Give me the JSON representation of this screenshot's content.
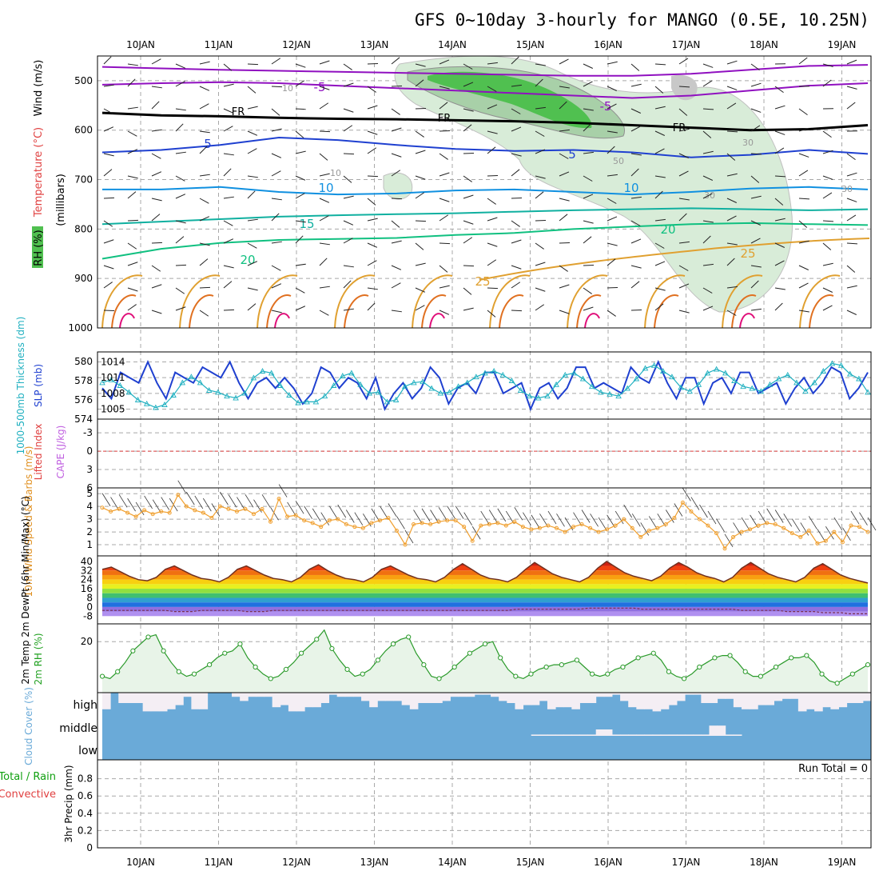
{
  "title": "GFS 0~10day 3-hourly for MANGO (0.5E, 10.25N)",
  "dates": [
    "10JAN",
    "11JAN",
    "12JAN",
    "13JAN",
    "14JAN",
    "15JAN",
    "16JAN",
    "17JAN",
    "18JAN",
    "19JAN"
  ],
  "colors": {
    "purple": "#9010c0",
    "blue": "#1f40d0",
    "lightblue": "#1090e0",
    "teal": "#10b0a0",
    "green": "#10c080",
    "orange": "#e0a030",
    "darkorange": "#e07020",
    "magenta": "#e0107a",
    "rh_light": "#d8ecd8",
    "rh_mid": "#a8d0a8",
    "rh_dark": "#50c050",
    "rh_gray": "#c8c8c8",
    "cloud": "#6aaad8",
    "cloud_clear": "#f4eef4",
    "rh2m_fill": "#e8f4e8",
    "rh2m_line": "#2a9a2a",
    "wind_line": "#f0a030",
    "slp_line": "#1f40d0",
    "thk_line": "#20b0c0",
    "li_line": "#e04040"
  },
  "chart_data": [
    {
      "type": "line",
      "panel": "upper-air",
      "ylabel_parts": [
        "Wind (m/s)",
        "Temperature (°C)",
        "RH (%)",
        "(millibars)"
      ],
      "yticks": [
        500,
        600,
        700,
        800,
        900,
        1000
      ],
      "ylim": [
        450,
        1000
      ],
      "isotherm_labels": [
        "-5",
        "-5",
        "5",
        "5",
        "10",
        "10",
        "15",
        "20",
        "20",
        "25",
        "25"
      ],
      "freezing_labels": [
        "FR",
        "FR",
        "FR"
      ],
      "rh_labels": [
        "10",
        "10",
        "30",
        "30",
        "30",
        "50"
      ],
      "series": [
        {
          "label": "-5",
          "color": "purple",
          "pressure": [
            472,
            475,
            478,
            480,
            482,
            484,
            486,
            488,
            490,
            490,
            486,
            478,
            470,
            468
          ]
        },
        {
          "label": "-5",
          "color": "purple",
          "pressure": [
            508,
            505,
            503,
            505,
            510,
            515,
            520,
            525,
            530,
            535,
            530,
            520,
            510,
            505
          ]
        },
        {
          "label": "FR",
          "color": "black",
          "pressure": [
            565,
            570,
            572,
            575,
            577,
            578,
            580,
            582,
            585,
            590,
            595,
            600,
            598,
            590
          ]
        },
        {
          "label": "5",
          "color": "blue",
          "pressure": [
            645,
            640,
            630,
            615,
            620,
            630,
            638,
            642,
            640,
            645,
            655,
            650,
            640,
            648
          ]
        },
        {
          "label": "10",
          "color": "lightblue",
          "pressure": [
            720,
            720,
            715,
            725,
            730,
            728,
            722,
            720,
            725,
            730,
            725,
            718,
            715,
            720
          ]
        },
        {
          "label": "15",
          "color": "teal",
          "pressure": [
            790,
            785,
            780,
            775,
            772,
            770,
            768,
            765,
            762,
            760,
            758,
            760,
            762,
            760
          ]
        },
        {
          "label": "20",
          "color": "green",
          "pressure": [
            860,
            840,
            828,
            822,
            820,
            818,
            812,
            808,
            800,
            795,
            790,
            788,
            790,
            792
          ]
        }
      ]
    },
    {
      "type": "line",
      "panel": "slp-thickness",
      "ylabel_left": "1000-500mb Thickness (dm)",
      "ylabel_right": "SLP (mb)",
      "left_ticks": [
        574,
        576,
        578,
        580
      ],
      "right_ticks": [
        1005,
        1008,
        1011,
        1014
      ],
      "series": [
        {
          "name": "SLP (mb)",
          "color": "slp_line",
          "axis": "right",
          "values": [
            1009,
            1007,
            1012,
            1011,
            1010,
            1014,
            1010,
            1007,
            1012,
            1011,
            1010,
            1013,
            1012,
            1011,
            1014,
            1010,
            1007,
            1010,
            1011,
            1009,
            1011,
            1009,
            1006,
            1008,
            1013,
            1012,
            1009,
            1011,
            1010,
            1007,
            1011,
            1005,
            1008,
            1010,
            1007,
            1009,
            1013,
            1011,
            1006,
            1009,
            1010,
            1008,
            1012,
            1012,
            1008,
            1009,
            1010,
            1005,
            1009,
            1010,
            1007,
            1009,
            1013,
            1013,
            1009,
            1010,
            1009,
            1008,
            1013,
            1011,
            1010,
            1014,
            1010,
            1007,
            1011,
            1011,
            1006,
            1010,
            1011,
            1008,
            1012,
            1012,
            1008,
            1009,
            1010,
            1006,
            1009,
            1011,
            1008,
            1010,
            1013,
            1012,
            1007,
            1009,
            1012
          ]
        },
        {
          "name": "1000-500mb Thickness (dm)",
          "color": "thk_line",
          "axis": "left",
          "values": [
            577.8,
            578.1,
            577.5,
            576.8,
            576.0,
            575.6,
            575.2,
            575.5,
            576.5,
            577.8,
            578.4,
            577.8,
            577.0,
            576.8,
            576.4,
            576.2,
            576.7,
            578.3,
            579.0,
            578.8,
            577.5,
            576.5,
            575.7,
            575.8,
            575.8,
            576.4,
            577.5,
            578.5,
            578.8,
            577.6,
            576.7,
            576.8,
            575.8,
            576.0,
            577.4,
            577.8,
            577.9,
            577.2,
            576.7,
            576.8,
            577.4,
            577.8,
            578.4,
            578.8,
            579.0,
            578.6,
            578.0,
            577.0,
            576.4,
            576.2,
            576.4,
            577.6,
            578.6,
            578.8,
            578.2,
            577.4,
            576.8,
            576.6,
            576.4,
            577.2,
            578.2,
            579.3,
            579.6,
            579.0,
            578.4,
            577.3,
            576.9,
            577.6,
            578.8,
            579.2,
            578.8,
            578.0,
            577.4,
            577.2,
            576.9,
            577.6,
            578.2,
            578.6,
            577.8,
            576.9,
            577.8,
            579.0,
            579.8,
            579.6,
            578.7,
            578.2,
            576.8
          ]
        }
      ]
    },
    {
      "type": "line",
      "panel": "lifted-index-cape",
      "ylabel_left": "Lifted Index",
      "ylabel_right": "CAPE (J/kg)",
      "yticks": [
        -3,
        0,
        3,
        6
      ],
      "series": [
        {
          "name": "Lifted Index",
          "color": "li_line",
          "values": []
        }
      ]
    },
    {
      "type": "line",
      "panel": "10m-wind",
      "ylabel": "10m Wind Speed & Barbs (m/s)",
      "yticks": [
        1,
        2,
        3,
        4,
        5
      ],
      "series": [
        {
          "name": "Speed",
          "color": "wind_line",
          "values": [
            3.9,
            3.6,
            3.8,
            3.5,
            3.2,
            3.7,
            3.4,
            3.6,
            3.5,
            4.9,
            4.0,
            3.7,
            3.5,
            3.1,
            4.0,
            3.8,
            3.6,
            3.8,
            3.4,
            3.8,
            2.8,
            4.6,
            3.2,
            3.3,
            2.9,
            2.7,
            2.4,
            2.9,
            3.0,
            2.6,
            2.4,
            2.3,
            2.7,
            2.9,
            3.1,
            2.1,
            1.0,
            2.6,
            2.7,
            2.6,
            2.8,
            2.9,
            2.9,
            2.4,
            1.3,
            2.5,
            2.6,
            2.7,
            2.5,
            2.8,
            2.4,
            2.2,
            2.3,
            2.5,
            2.3,
            2.0,
            2.4,
            2.6,
            2.3,
            2.0,
            2.2,
            2.5,
            3.0,
            2.3,
            1.6,
            2.1,
            2.3,
            2.6,
            3.1,
            4.3,
            3.6,
            3.0,
            2.5,
            1.9,
            0.7,
            1.6,
            2.0,
            2.2,
            2.5,
            2.7,
            2.6,
            2.3,
            1.9,
            1.6,
            2.1,
            1.1,
            1.3,
            2.0,
            1.2,
            2.5,
            2.4,
            2.0
          ]
        }
      ]
    },
    {
      "type": "area",
      "panel": "2m-temperature",
      "ylabel": "2m Temp 2m DewPt (6hr Min/Max) (°C)",
      "yticks": [
        40,
        32,
        24,
        16,
        8,
        0,
        -8
      ],
      "series": [
        {
          "name": "2m Temp",
          "values": [
            33,
            35,
            31,
            27,
            24,
            23,
            26,
            33,
            36,
            32,
            28,
            25,
            24,
            22,
            26,
            33,
            36,
            32,
            28,
            25,
            24,
            22,
            26,
            33,
            37,
            32,
            28,
            25,
            24,
            22,
            26,
            33,
            36,
            32,
            28,
            25,
            24,
            22,
            26,
            33,
            38,
            33,
            28,
            25,
            24,
            22,
            26,
            33,
            39,
            34,
            29,
            26,
            24,
            22,
            26,
            34,
            40,
            35,
            30,
            27,
            25,
            23,
            27,
            34,
            39,
            35,
            30,
            27,
            25,
            22,
            26,
            34,
            39,
            34,
            29,
            26,
            24,
            22,
            26,
            34,
            38,
            33,
            28,
            25,
            23,
            21
          ]
        },
        {
          "name": "2m DewPt",
          "values": [
            -3,
            -3,
            -3,
            -3,
            -3,
            -3,
            -3,
            -3,
            -4,
            -4,
            -4,
            -3,
            -3,
            -3,
            -3,
            -3,
            -4,
            -4,
            -4,
            -3,
            -3,
            -3,
            -3,
            -3,
            -3,
            -3,
            -3,
            -3,
            -3,
            -3,
            -3,
            -3,
            -3,
            -3,
            -3,
            -3,
            -3,
            -3,
            -3,
            -3,
            -3,
            -3,
            -3,
            -3,
            -3,
            -3,
            -2,
            -2,
            -2,
            -2,
            -2,
            -2,
            -2,
            -2,
            -1,
            -1,
            -1,
            -1,
            -1,
            -1,
            -2,
            -2,
            -2,
            -2,
            -2,
            -2,
            -2,
            -2,
            -2,
            -2,
            -2,
            -3,
            -3,
            -3,
            -3,
            -3,
            -4,
            -4,
            -4,
            -4,
            -5,
            -5,
            -5,
            -6,
            -6,
            -6
          ]
        }
      ]
    },
    {
      "type": "area",
      "panel": "2m-rh",
      "ylabel": "2m RH (%)",
      "yticks": [
        20
      ],
      "series": [
        {
          "name": "2m RH",
          "values": [
            5,
            4,
            7,
            11,
            16,
            19,
            22,
            23,
            16,
            11,
            7,
            5,
            6,
            8,
            10,
            13,
            15,
            16,
            19,
            13,
            9,
            6,
            4,
            5,
            8,
            11,
            15,
            18,
            21,
            25,
            17,
            12,
            8,
            5,
            6,
            8,
            12,
            16,
            19,
            21,
            22,
            15,
            10,
            5,
            4,
            6,
            9,
            12,
            15,
            17,
            19,
            20,
            13,
            8,
            5,
            4,
            6,
            8,
            9,
            10,
            10,
            11,
            12,
            9,
            6,
            5,
            6,
            8,
            9,
            11,
            13,
            14,
            15,
            12,
            7,
            5,
            4,
            6,
            9,
            11,
            13,
            14,
            14,
            11,
            7,
            5,
            5,
            7,
            9,
            11,
            13,
            13,
            14,
            11,
            6,
            3,
            2,
            4,
            6,
            8,
            10
          ]
        }
      ]
    },
    {
      "type": "bar",
      "panel": "cloud-cover",
      "ylabel": "Cloud Cover (%)",
      "levels": [
        "high",
        "middle",
        "low"
      ],
      "series": [
        {
          "name": "high",
          "values": [
            0.2,
            1,
            0.5,
            0.5,
            0.5,
            0.1,
            0.1,
            0.1,
            0.2,
            0.4,
            0.8,
            0.2,
            0.2,
            1,
            1,
            1,
            0.8,
            0.6,
            0.8,
            0.8,
            0.8,
            0.3,
            0.4,
            0.1,
            0.1,
            0.3,
            0.3,
            0.5,
            0.9,
            0.8,
            0.8,
            0.8,
            0.6,
            0.3,
            0.6,
            0.6,
            0.6,
            0.4,
            0.2,
            0.5,
            0.5,
            0.5,
            0.6,
            0.8,
            0.8,
            0.8,
            0.9,
            0.9,
            0.8,
            0.6,
            0.5,
            0.2,
            0.4,
            0.4,
            0.6,
            0.2,
            0.3,
            0.3,
            0.2,
            0.5,
            0.5,
            0.8,
            0.8,
            0.9,
            0.6,
            0.3,
            0.2,
            0.2,
            0.1,
            0.2,
            0.4,
            0.6,
            0.9,
            0.9,
            0.5,
            0.5,
            0.7,
            0.7,
            0.3,
            0.2,
            0.2,
            0.4,
            0.4,
            0.6,
            0.7,
            0.7,
            0.1,
            0.2,
            0.1,
            0.3,
            0.2,
            0.3,
            0.5,
            0.5,
            0.6
          ]
        },
        {
          "name": "middle",
          "values": [
            0,
            0,
            0,
            0,
            0,
            0,
            0,
            0,
            0,
            0,
            0,
            0,
            0,
            0,
            0,
            0,
            0,
            0,
            0,
            0,
            0,
            0,
            0,
            0,
            0,
            0,
            0,
            0,
            0,
            0,
            0,
            0,
            0,
            0,
            0,
            0,
            0,
            0,
            0,
            0,
            0,
            0,
            0,
            0,
            0,
            0,
            0,
            0,
            0,
            0,
            0,
            0,
            0,
            0.1,
            0.1,
            0.1,
            0.1,
            0.1,
            0.1,
            0.1,
            0.1,
            0.5,
            0.5,
            0.1,
            0.1,
            0.1,
            0.1,
            0.1,
            0.1,
            0.1,
            0.1,
            0.1,
            0.1,
            0.1,
            0.1,
            0.8,
            0.8,
            0.1,
            0.1,
            0,
            0,
            0,
            0,
            0,
            0,
            0,
            0,
            0,
            0,
            0,
            0,
            0,
            0,
            0,
            0
          ]
        }
      ]
    },
    {
      "type": "bar",
      "panel": "precip",
      "ylabel_parts": [
        "Total / Rain",
        "Convective",
        "3hr Precip (mm)"
      ],
      "yticks": [
        0,
        0.2,
        0.4,
        0.6,
        0.8
      ],
      "ylim": [
        0,
        1
      ],
      "run_total": "Run Total = 0",
      "series": [
        {
          "name": "Total",
          "values": []
        }
      ]
    }
  ]
}
